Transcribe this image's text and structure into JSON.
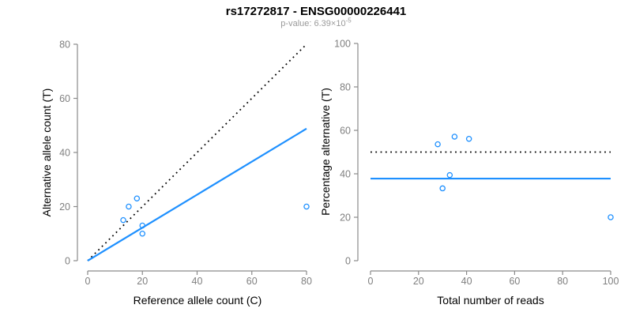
{
  "title": "rs17272817 - ENSG00000226441",
  "subtitle": {
    "text": "p-value: 6.39×10",
    "exponent": "-5"
  },
  "colors": {
    "accent_blue": "#1E90FF",
    "axis_gray": "#8a8a8a",
    "tick_label_gray": "#7f7f7f",
    "label_black": "#000000",
    "subtitle_gray": "#9a9a9a",
    "background": "#ffffff"
  },
  "chart_data": [
    {
      "type": "scatter",
      "name": "allele-count-panel",
      "xlabel": "Reference allele count (C)",
      "ylabel": "Alternative allele count (T)",
      "xlim": [
        0,
        80
      ],
      "ylim": [
        0,
        80
      ],
      "xticks": [
        0,
        20,
        40,
        60,
        80
      ],
      "yticks": [
        0,
        20,
        40,
        60,
        80
      ],
      "grid": false,
      "legend": false,
      "points": [
        [
          13,
          15
        ],
        [
          15,
          20
        ],
        [
          18,
          23
        ],
        [
          20,
          13
        ],
        [
          20,
          10
        ],
        [
          80,
          20
        ]
      ],
      "point_color": "#1E90FF",
      "lines": [
        {
          "name": "identity-line",
          "dash": "dotted",
          "color": "#000000",
          "x": [
            0,
            80
          ],
          "y": [
            0,
            80
          ]
        },
        {
          "name": "regression-line",
          "dash": "solid",
          "color": "#1E90FF",
          "x": [
            0,
            80
          ],
          "y": [
            0,
            48.8
          ]
        }
      ]
    },
    {
      "type": "scatter",
      "name": "percentage-panel",
      "xlabel": "Total number of reads",
      "ylabel": "Percentage alternative (T)",
      "xlim": [
        0,
        100
      ],
      "ylim": [
        0,
        100
      ],
      "xticks": [
        0,
        20,
        40,
        60,
        80,
        100
      ],
      "yticks": [
        0,
        20,
        40,
        60,
        80,
        100
      ],
      "grid": false,
      "legend": false,
      "points": [
        [
          28,
          53.6
        ],
        [
          35,
          57.1
        ],
        [
          41,
          56.1
        ],
        [
          33,
          39.4
        ],
        [
          30,
          33.3
        ],
        [
          100,
          20
        ]
      ],
      "point_color": "#1E90FF",
      "lines": [
        {
          "name": "fifty-percent-line",
          "dash": "dotted",
          "color": "#000000",
          "x": [
            0,
            100
          ],
          "y": [
            50,
            50
          ]
        },
        {
          "name": "mean-percentage-line",
          "dash": "solid",
          "color": "#1E90FF",
          "x": [
            0,
            100
          ],
          "y": [
            37.8,
            37.8
          ]
        }
      ]
    }
  ]
}
